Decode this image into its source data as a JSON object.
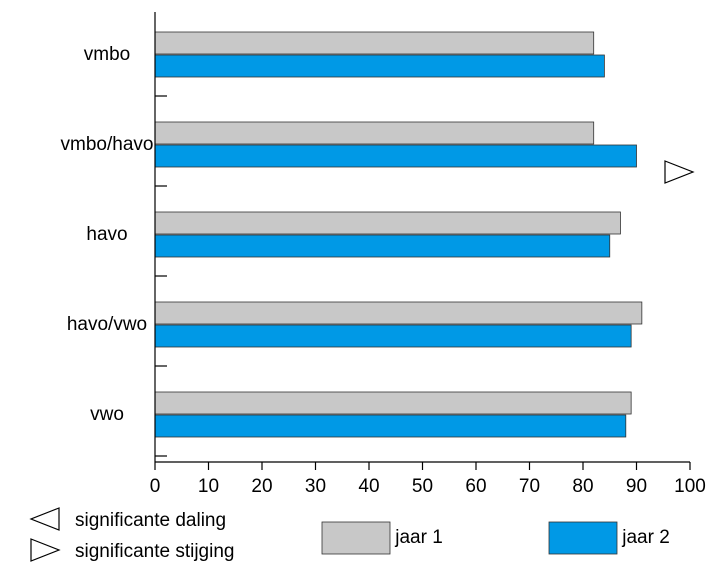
{
  "chart_data": {
    "type": "bar",
    "orientation": "horizontal",
    "categories": [
      "vmbo",
      "vmbo/havo",
      "havo",
      "havo/vwo",
      "vwo"
    ],
    "series": [
      {
        "name": "jaar 1",
        "color": "#c8c8c8",
        "values": [
          82,
          82,
          87,
          91,
          89
        ]
      },
      {
        "name": "jaar 2",
        "color": "#0099e6",
        "values": [
          84,
          90,
          85,
          89,
          88
        ]
      }
    ],
    "significance": [
      null,
      "stijging",
      null,
      null,
      null
    ],
    "xlim": [
      0,
      100
    ],
    "xticks": [
      0,
      10,
      20,
      30,
      40,
      50,
      60,
      70,
      80,
      90,
      100
    ],
    "grid": false,
    "legend": {
      "placement": "bottom",
      "items": [
        {
          "label": "jaar 1",
          "series": 0
        },
        {
          "label": "jaar 2",
          "series": 1
        }
      ]
    },
    "annotation_legend": [
      {
        "symbol": "daling",
        "label": "significante daling"
      },
      {
        "symbol": "stijging",
        "label": "significante stijging"
      }
    ]
  }
}
